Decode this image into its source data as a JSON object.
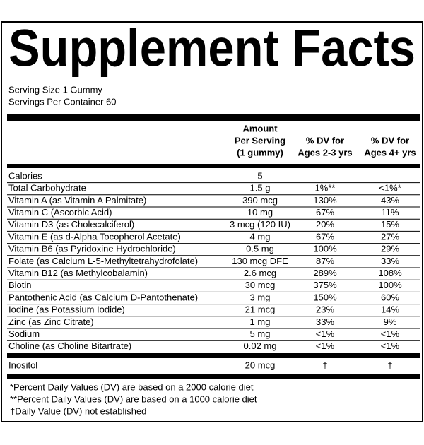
{
  "title": "Supplement Facts",
  "serving_size": "Serving Size 1 Gummy",
  "servings_per_container": "Servings Per Container 60",
  "headers": [
    [
      "Amount",
      "Per Serving",
      "(1 gummy)"
    ],
    [
      "% DV for",
      "Ages 2-3 yrs"
    ],
    [
      "% DV for",
      "Ages 4+ yrs"
    ]
  ],
  "rows": [
    [
      "Calories",
      "5"
    ],
    [
      "Total Carbohydrate",
      "1.5 g",
      "1%**",
      "<1%*"
    ],
    [
      "Vitamin A (as Vitamin A Palmitate)",
      "390 mcg",
      "130%",
      "43%"
    ],
    [
      "Vitamin C (Ascorbic Acid)",
      "10 mg",
      "67%",
      "11%"
    ],
    [
      "Vitamin D3 (as Cholecalciferol)",
      "3 mcg (120 IU)",
      "20%",
      "15%"
    ],
    [
      "Vitamin E (as d-Alpha Tocopherol Acetate)",
      "4 mg",
      "67%",
      "27%"
    ],
    [
      "Vitamin B6 (as Pyridoxine Hydrochloride)",
      "0.5 mg",
      "100%",
      "29%"
    ],
    [
      "Folate (as Calcium L-5-Methyltetrahydrofolate)",
      "130 mcg DFE",
      "87%",
      "33%"
    ],
    [
      "Vitamin B12 (as Methylcobalamin)",
      "2.6 mcg",
      "289%",
      "108%"
    ],
    [
      "Biotin",
      "30 mcg",
      "375%",
      "100%"
    ],
    [
      "Pantothenic Acid (as Calcium D-Pantothenate)",
      "3 mg",
      "150%",
      "60%"
    ],
    [
      "Iodine (as Potassium Iodide)",
      "21 mcg",
      "23%",
      "14%"
    ],
    [
      "Zinc (as Zinc Citrate)",
      "1 mg",
      "33%",
      "9%"
    ],
    [
      "Sodium",
      "5 mg",
      "<1%",
      "<1%"
    ],
    [
      "Choline (as Choline Bitartrate)",
      "0.02 mg",
      "<1%",
      "<1%"
    ]
  ],
  "other_row": [
    "Inositol",
    "20 mcg",
    "†",
    "†"
  ],
  "footnotes": [
    "*Percent Daily Values (DV) are based on a 2000 calorie diet",
    "**Percent Daily Values (DV) are based on a 1000 calorie diet",
    "†Daily Value (DV) not established"
  ]
}
